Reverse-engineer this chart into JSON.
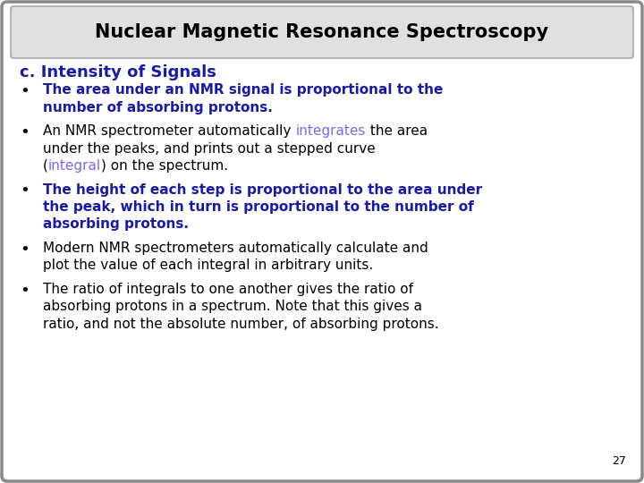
{
  "title": "Nuclear Magnetic Resonance Spectroscopy",
  "subtitle": "c. Intensity of Signals",
  "background_color": "#ffffff",
  "border_color": "#888888",
  "title_color": "#000000",
  "subtitle_color": "#1a1aaa",
  "blue": "#1a1aaa",
  "purple": "#7b68ee",
  "black": "#000000",
  "page_number": "27",
  "title_fontsize": 15,
  "subtitle_fontsize": 13,
  "body_fontsize": 11,
  "bullet_fontsize": 13
}
